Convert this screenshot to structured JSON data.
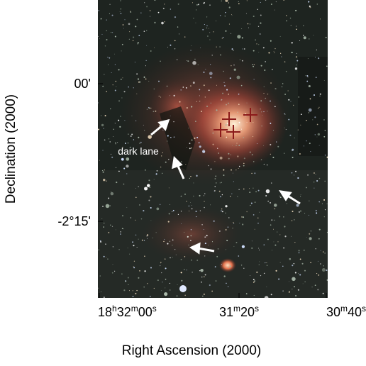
{
  "image": {
    "annotation": "dark lane",
    "y_axis": {
      "label": "Declination (2000)",
      "ticks": [
        "00'",
        "-2°15'"
      ]
    },
    "x_axis": {
      "label": "Right Ascension (2000)",
      "ticks": [
        [
          "18",
          "h",
          "32",
          "m",
          "00",
          "s"
        ],
        [
          "31",
          "m",
          "20",
          "s"
        ],
        [
          "30",
          "m",
          "40",
          "s"
        ]
      ]
    }
  }
}
